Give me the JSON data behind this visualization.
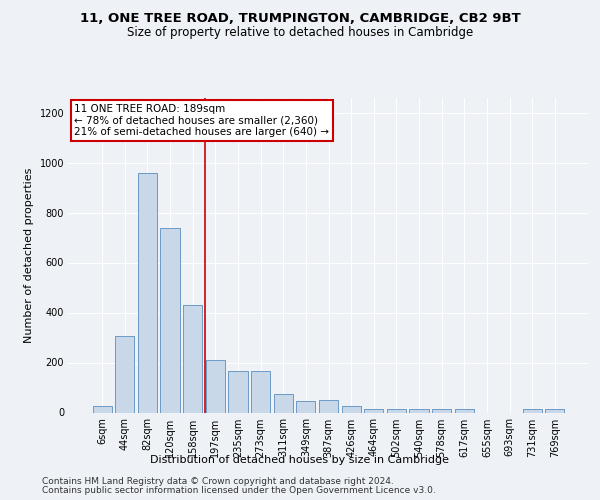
{
  "title": "11, ONE TREE ROAD, TRUMPINGTON, CAMBRIDGE, CB2 9BT",
  "subtitle": "Size of property relative to detached houses in Cambridge",
  "xlabel": "Distribution of detached houses by size in Cambridge",
  "ylabel": "Number of detached properties",
  "bar_labels": [
    "6sqm",
    "44sqm",
    "82sqm",
    "120sqm",
    "158sqm",
    "197sqm",
    "235sqm",
    "273sqm",
    "311sqm",
    "349sqm",
    "387sqm",
    "426sqm",
    "464sqm",
    "502sqm",
    "540sqm",
    "578sqm",
    "617sqm",
    "655sqm",
    "693sqm",
    "731sqm",
    "769sqm"
  ],
  "bar_heights": [
    25,
    305,
    960,
    740,
    430,
    210,
    165,
    165,
    75,
    48,
    50,
    28,
    15,
    13,
    13,
    13,
    13,
    0,
    0,
    15,
    13
  ],
  "bar_color": "#c8d8e8",
  "bar_edge_color": "#5a8fc0",
  "ylim": [
    0,
    1260
  ],
  "vline_x_index": 4.55,
  "vline_color": "#cc0000",
  "annotation_line1": "11 ONE TREE ROAD: 189sqm",
  "annotation_line2": "← 78% of detached houses are smaller (2,360)",
  "annotation_line3": "21% of semi-detached houses are larger (640) →",
  "annotation_box_color": "#ffffff",
  "annotation_box_edge_color": "#cc0000",
  "annotation_fontsize": 7.5,
  "title_fontsize": 9.5,
  "subtitle_fontsize": 8.5,
  "xlabel_fontsize": 8,
  "ylabel_fontsize": 8,
  "tick_fontsize": 7,
  "footer_line1": "Contains HM Land Registry data © Crown copyright and database right 2024.",
  "footer_line2": "Contains public sector information licensed under the Open Government Licence v3.0.",
  "footer_fontsize": 6.5,
  "background_color": "#eef2f7",
  "grid_color": "#ffffff"
}
